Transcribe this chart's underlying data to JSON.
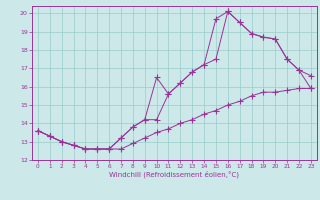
{
  "background_color": "#cce8e8",
  "grid_color": "#99cccc",
  "line_color": "#993399",
  "xlabel": "Windchill (Refroidissement éolien,°C)",
  "xlim": [
    -0.5,
    23.5
  ],
  "ylim": [
    12,
    20.4
  ],
  "yticks": [
    12,
    13,
    14,
    15,
    16,
    17,
    18,
    19,
    20
  ],
  "xticks": [
    0,
    1,
    2,
    3,
    4,
    5,
    6,
    7,
    8,
    9,
    10,
    11,
    12,
    13,
    14,
    15,
    16,
    17,
    18,
    19,
    20,
    21,
    22,
    23
  ],
  "series1_x": [
    0,
    1,
    2,
    3,
    4,
    5,
    6,
    7,
    8,
    9,
    10,
    11,
    12,
    13,
    14,
    15,
    16,
    17,
    18,
    19,
    20,
    21,
    22,
    23
  ],
  "series1_y": [
    13.6,
    13.3,
    13.0,
    12.8,
    12.6,
    12.6,
    12.6,
    12.6,
    12.9,
    13.2,
    13.5,
    13.7,
    14.0,
    14.2,
    14.5,
    14.7,
    15.0,
    15.2,
    15.5,
    15.7,
    15.7,
    15.8,
    15.9,
    15.9
  ],
  "series2_x": [
    0,
    1,
    2,
    3,
    4,
    5,
    6,
    7,
    8,
    9,
    10,
    11,
    12,
    13,
    14,
    15,
    16,
    17,
    18,
    19,
    20,
    21,
    22,
    23
  ],
  "series2_y": [
    13.6,
    13.3,
    13.0,
    12.8,
    12.6,
    12.6,
    12.6,
    13.2,
    13.8,
    14.2,
    16.5,
    15.6,
    16.2,
    16.8,
    17.2,
    19.7,
    20.1,
    19.5,
    18.9,
    18.7,
    18.6,
    17.5,
    16.9,
    16.6
  ],
  "series3_x": [
    0,
    1,
    2,
    3,
    4,
    5,
    6,
    7,
    8,
    9,
    10,
    11,
    12,
    13,
    14,
    15,
    16,
    17,
    18,
    19,
    20,
    21,
    22,
    23
  ],
  "series3_y": [
    13.6,
    13.3,
    13.0,
    12.8,
    12.6,
    12.6,
    12.6,
    13.2,
    13.8,
    14.2,
    14.2,
    15.6,
    16.2,
    16.8,
    17.2,
    17.5,
    20.1,
    19.5,
    18.9,
    18.7,
    18.6,
    17.5,
    16.9,
    15.9
  ]
}
